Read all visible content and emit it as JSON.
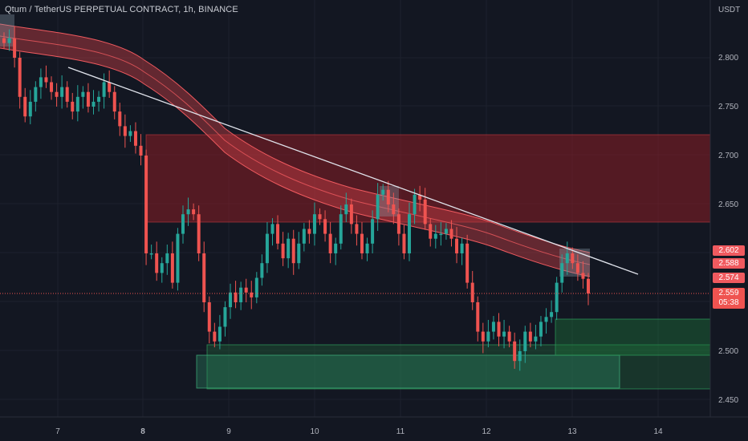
{
  "header": {
    "title": "Qtum / TetherUS PERPETUAL CONTRACT, 1h, BINANCE"
  },
  "axis": {
    "currency": "USDT",
    "price_labels": [
      "2.800",
      "2.750",
      "2.700",
      "2.650",
      "2.500",
      "2.450"
    ],
    "time_labels": [
      "7",
      "8",
      "9",
      "10",
      "11",
      "12",
      "13",
      "14"
    ]
  },
  "price_tags": {
    "upper": "2.602",
    "middle": "2.588",
    "lower": "2.574",
    "current": "2.559",
    "countdown": "05:38"
  },
  "colors": {
    "background": "#131722",
    "bull": "#26a69a",
    "bear": "#ef5350",
    "band": "#f05a5f",
    "supply_zone": "#8b1e24",
    "demand_zone": "#1e5a37",
    "trendline": "#e0e3eb"
  },
  "chart_data": {
    "type": "candlestick",
    "symbol": "Qtum / TetherUS PERPETUAL CONTRACT",
    "timeframe": "1h",
    "exchange": "BINANCE",
    "currency": "USDT",
    "x_ticks": [
      "7",
      "8",
      "9",
      "10",
      "11",
      "12",
      "13",
      "14"
    ],
    "y_range": [
      2.44,
      2.83
    ],
    "y_ticks": [
      2.8,
      2.75,
      2.7,
      2.65,
      2.5,
      2.45
    ],
    "last_price": 2.559,
    "band_levels": {
      "upper": 2.602,
      "middle": 2.588,
      "lower": 2.574
    },
    "closes": [
      2.815,
      2.82,
      2.8,
      2.76,
      2.74,
      2.755,
      2.77,
      2.78,
      2.775,
      2.765,
      2.76,
      2.77,
      2.755,
      2.745,
      2.76,
      2.765,
      2.75,
      2.755,
      2.76,
      2.775,
      2.765,
      2.745,
      2.73,
      2.72,
      2.725,
      2.71,
      2.7,
      2.6,
      2.6,
      2.58,
      2.59,
      2.6,
      2.57,
      2.62,
      2.64,
      2.645,
      2.64,
      2.6,
      2.55,
      2.52,
      2.51,
      2.525,
      2.545,
      2.56,
      2.55,
      2.565,
      2.56,
      2.555,
      2.575,
      2.59,
      2.62,
      2.63,
      2.61,
      2.595,
      2.615,
      2.59,
      2.61,
      2.625,
      2.62,
      2.64,
      2.635,
      2.62,
      2.6,
      2.61,
      2.64,
      2.65,
      2.63,
      2.62,
      2.6,
      2.61,
      2.635,
      2.66,
      2.665,
      2.65,
      2.64,
      2.62,
      2.6,
      2.64,
      2.66,
      2.655,
      2.63,
      2.615,
      2.62,
      2.62,
      2.625,
      2.615,
      2.6,
      2.61,
      2.57,
      2.55,
      2.52,
      2.51,
      2.52,
      2.53,
      2.515,
      2.52,
      2.51,
      2.49,
      2.5,
      2.52,
      2.51,
      2.515,
      2.53,
      2.535,
      2.54,
      2.57,
      2.59,
      2.6,
      2.59,
      2.58,
      2.574,
      2.559
    ],
    "zones": [
      {
        "kind": "supply",
        "from": 2.63,
        "to": 2.72
      },
      {
        "kind": "demand",
        "from": 2.46,
        "to": 2.505
      },
      {
        "kind": "demand",
        "from": 2.495,
        "to": 2.53
      }
    ],
    "trendline": [
      {
        "x": "7",
        "y": 2.79
      },
      {
        "x": "14",
        "y": 2.587
      }
    ]
  }
}
